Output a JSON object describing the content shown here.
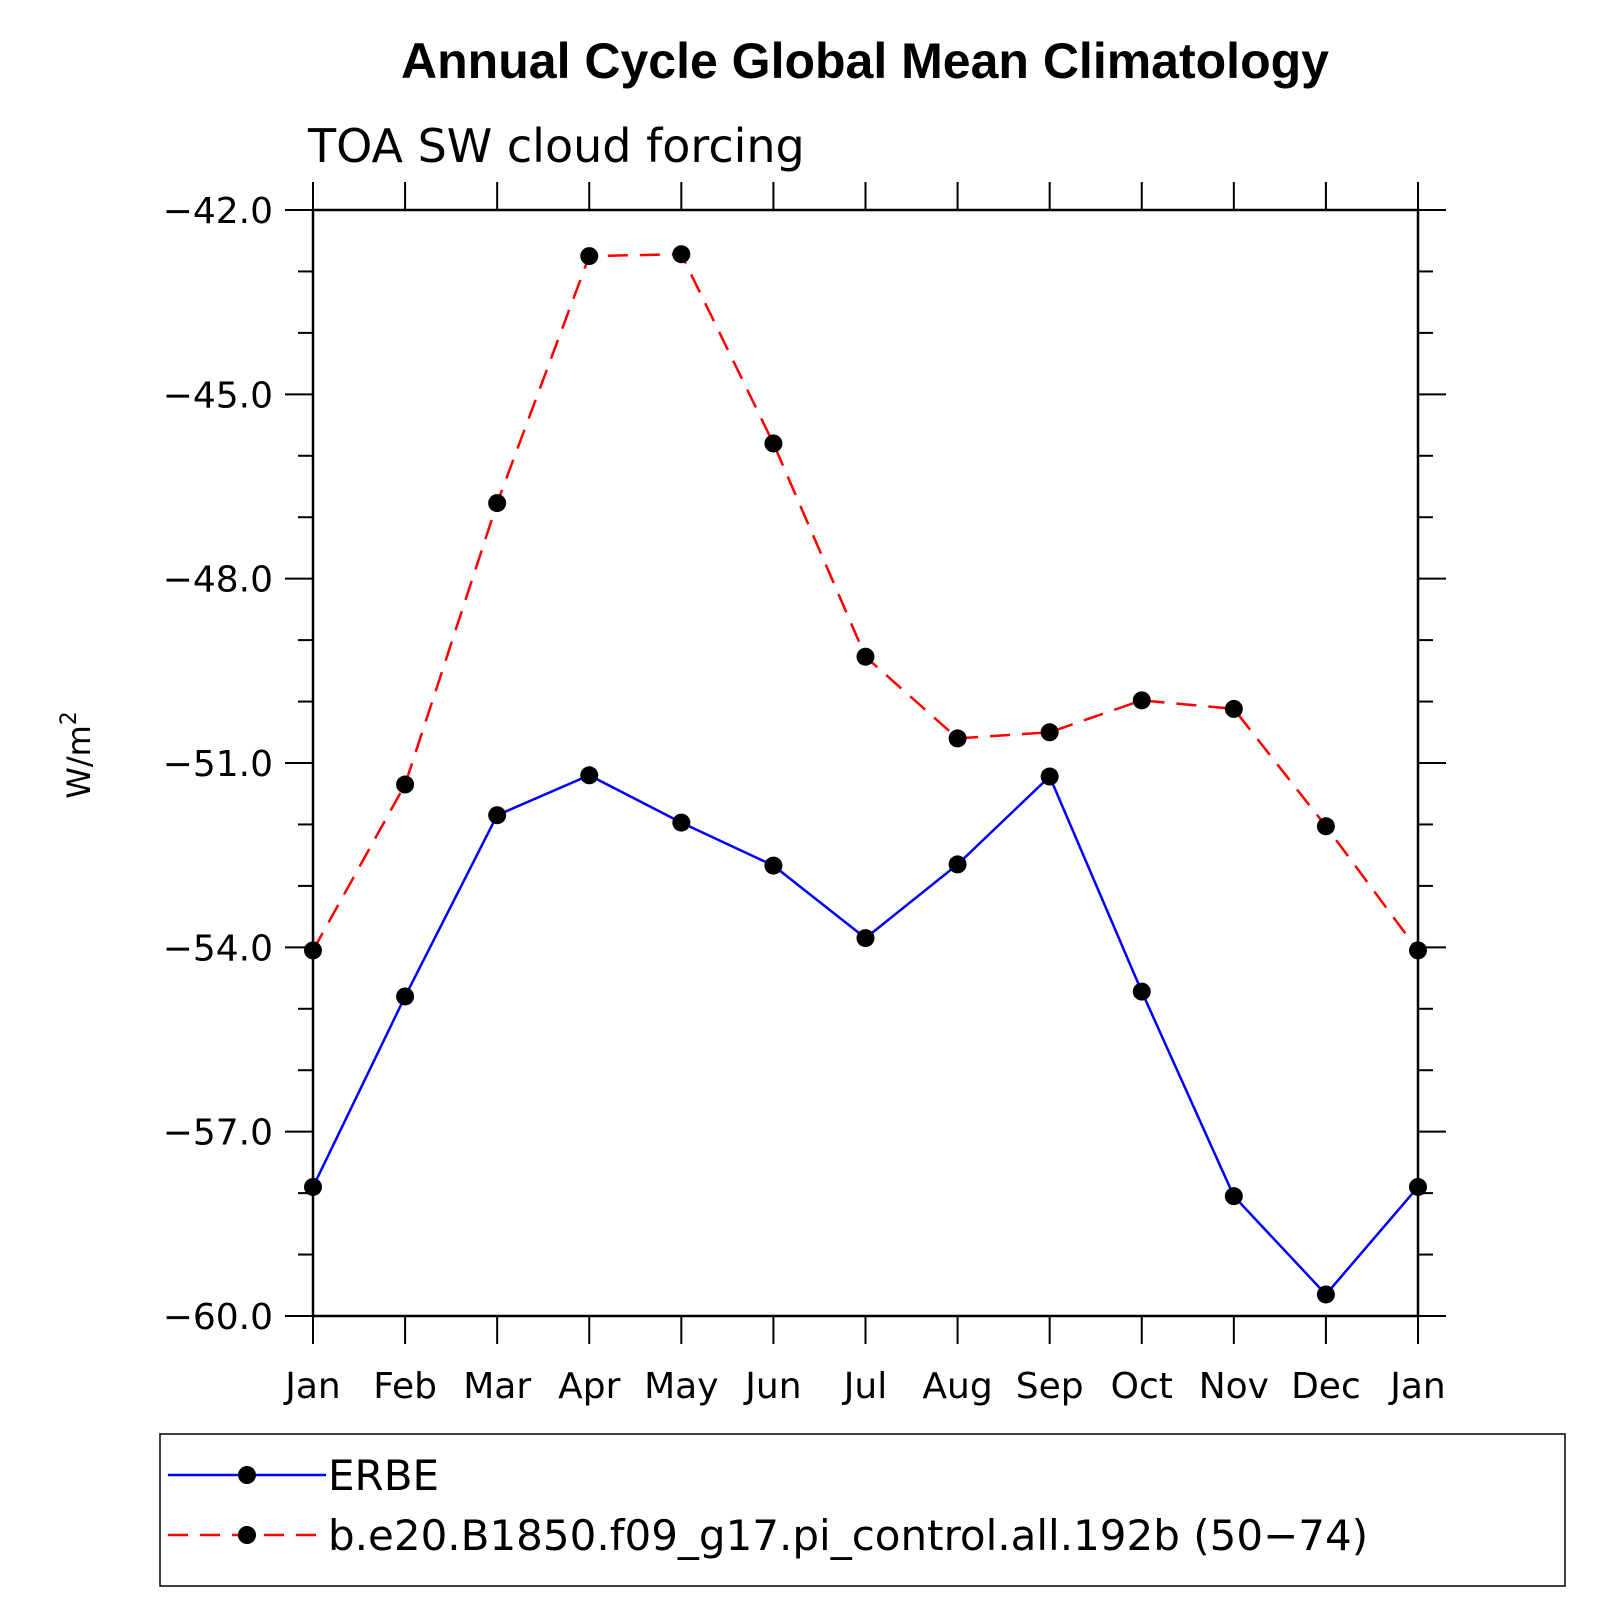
{
  "chart_data": {
    "type": "line",
    "title": "Annual Cycle Global Mean Climatology",
    "subtitle": "TOA SW cloud forcing",
    "ylabel": "W/m",
    "ylabel_superscript": "2",
    "ylim": [
      -60.0,
      -42.0
    ],
    "y_ticks": [
      "-42.0",
      "-45.0",
      "-48.0",
      "-51.0",
      "-54.0",
      "-57.0",
      "-60.0"
    ],
    "y_tick_values": [
      -42,
      -45,
      -48,
      -51,
      -54,
      -57,
      -60
    ],
    "categories": [
      "Jan",
      "Feb",
      "Mar",
      "Apr",
      "May",
      "Jun",
      "Jul",
      "Aug",
      "Sep",
      "Oct",
      "Nov",
      "Dec",
      "Jan"
    ],
    "series": [
      {
        "name": "ERBE",
        "color": "#0000ff",
        "dashed": false,
        "values": [
          -57.9,
          -54.8,
          -51.85,
          -51.2,
          -51.97,
          -52.67,
          -53.85,
          -52.65,
          -51.22,
          -54.72,
          -58.05,
          -59.65,
          -57.9
        ]
      },
      {
        "name": "b.e20.B1850.f09_g17.pi_control.all.192b (50−74)",
        "color": "#ff0000",
        "dashed": true,
        "values": [
          -54.05,
          -51.35,
          -46.77,
          -42.75,
          -42.72,
          -45.8,
          -49.27,
          -50.6,
          -50.5,
          -49.98,
          -50.12,
          -52.03,
          -54.05
        ]
      }
    ],
    "legend_position": "bottom",
    "grid": false,
    "marker_color": "#000000"
  }
}
